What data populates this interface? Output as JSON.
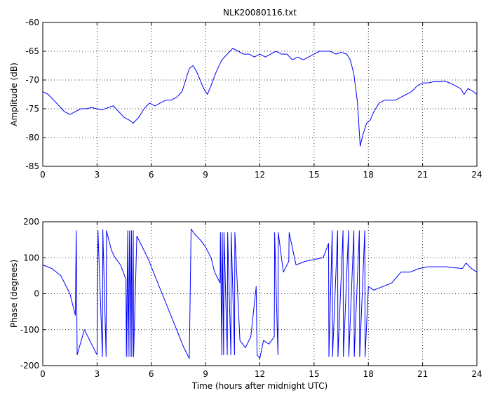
{
  "chart_data": [
    {
      "type": "line",
      "title": "NLK20080116.txt",
      "xlabel": "",
      "ylabel": "Amplitude (dB)",
      "xlim": [
        0,
        24
      ],
      "ylim": [
        -85,
        -60
      ],
      "xticks": [
        "0",
        "3",
        "6",
        "9",
        "12",
        "15",
        "18",
        "21",
        "24"
      ],
      "yticks": [
        "-85",
        "-80",
        "-75",
        "-70",
        "-65",
        "-60"
      ],
      "grid": true,
      "color": "#0000ff",
      "series": [
        {
          "x": [
            0,
            0.3,
            0.6,
            0.9,
            1.2,
            1.5,
            1.8,
            2.1,
            2.4,
            2.7,
            3.0,
            3.3,
            3.6,
            3.9,
            4.2,
            4.5,
            4.8,
            5.0,
            5.3,
            5.6,
            5.9,
            6.2,
            6.5,
            6.8,
            7.1,
            7.4,
            7.7,
            7.9,
            8.1,
            8.3,
            8.5,
            8.7,
            8.9,
            9.1,
            9.3,
            9.6,
            9.9,
            10.2,
            10.5,
            10.8,
            11.1,
            11.4,
            11.7,
            12.0,
            12.3,
            12.6,
            12.9,
            13.2,
            13.5,
            13.8,
            14.1,
            14.4,
            14.7,
            15.0,
            15.3,
            15.6,
            15.9,
            16.2,
            16.5,
            16.8,
            17.0,
            17.2,
            17.4,
            17.55,
            17.7,
            17.9,
            18.1,
            18.3,
            18.6,
            18.9,
            19.2,
            19.5,
            19.8,
            20.1,
            20.4,
            20.7,
            21.0,
            21.3,
            21.6,
            21.9,
            22.2,
            22.5,
            22.8,
            23.1,
            23.3,
            23.5,
            23.8,
            24.0
          ],
          "values": [
            -72,
            -72.5,
            -73.5,
            -74.5,
            -75.5,
            -76,
            -75.5,
            -75,
            -75,
            -74.8,
            -75,
            -75.2,
            -74.8,
            -74.5,
            -75.5,
            -76.5,
            -77,
            -77.5,
            -76.5,
            -75,
            -74,
            -74.5,
            -74,
            -73.5,
            -73.5,
            -73,
            -72,
            -70,
            -68,
            -67.5,
            -68.5,
            -70,
            -71.5,
            -72.5,
            -71,
            -68.5,
            -66.5,
            -65.5,
            -64.5,
            -65,
            -65.5,
            -65.5,
            -66,
            -65.5,
            -66,
            -65.5,
            -65,
            -65.5,
            -65.5,
            -66.5,
            -66,
            -66.5,
            -66,
            -65.5,
            -65,
            -65,
            -65,
            -65.5,
            -65.2,
            -65.5,
            -66.5,
            -69,
            -74,
            -81.5,
            -79.5,
            -77.5,
            -77,
            -75.5,
            -74,
            -73.5,
            -73.5,
            -73.5,
            -73,
            -72.5,
            -72,
            -71,
            -70.5,
            -70.5,
            -70.3,
            -70.3,
            -70.2,
            -70.5,
            -71,
            -71.5,
            -72.5,
            -71.5,
            -72,
            -72.5
          ]
        }
      ]
    },
    {
      "type": "line",
      "title": "",
      "xlabel": "Time (hours after midnight UTC)",
      "ylabel": "Phase (degrees)",
      "xlim": [
        0,
        24
      ],
      "ylim": [
        -200,
        200
      ],
      "xticks": [
        "0",
        "3",
        "6",
        "9",
        "12",
        "15",
        "18",
        "21",
        "24"
      ],
      "yticks": [
        "-200",
        "-100",
        "0",
        "100",
        "200"
      ],
      "grid": true,
      "color": "#0000ff",
      "series": [
        {
          "x": [
            0,
            0.5,
            1.0,
            1.5,
            1.8,
            1.85,
            1.9,
            2.3,
            2.7,
            3.0,
            3.05,
            3.3,
            3.32,
            3.5,
            3.52,
            3.8,
            4.0,
            4.3,
            4.6,
            4.62,
            4.7,
            4.72,
            4.8,
            4.82,
            4.9,
            4.92,
            5.0,
            5.02,
            5.2,
            5.5,
            5.8,
            6.2,
            6.6,
            7.0,
            7.4,
            7.8,
            8.1,
            8.2,
            8.4,
            8.7,
            9.0,
            9.3,
            9.5,
            9.8,
            9.82,
            9.9,
            9.92,
            10.0,
            10.02,
            10.2,
            10.22,
            10.4,
            10.42,
            10.6,
            10.62,
            10.9,
            11.2,
            11.5,
            11.8,
            11.85,
            12.0,
            12.2,
            12.5,
            12.8,
            12.82,
            13.0,
            13.02,
            13.3,
            13.5,
            13.6,
            13.62,
            14.0,
            14.5,
            15.0,
            15.5,
            15.8,
            15.82,
            16.0,
            16.02,
            16.3,
            16.32,
            16.6,
            16.62,
            16.9,
            16.92,
            17.2,
            17.22,
            17.5,
            17.52,
            17.8,
            17.82,
            18.0,
            18.3,
            18.8,
            19.3,
            19.8,
            20.3,
            20.8,
            21.3,
            21.8,
            22.3,
            22.8,
            23.2,
            23.4,
            23.7,
            24.0
          ],
          "values": [
            80,
            70,
            50,
            0,
            -60,
            175,
            -170,
            -100,
            -140,
            -170,
            175,
            -175,
            178,
            -175,
            175,
            120,
            100,
            80,
            40,
            -175,
            175,
            -175,
            175,
            -175,
            175,
            -175,
            175,
            -175,
            160,
            130,
            100,
            50,
            0,
            -50,
            -100,
            -150,
            -180,
            180,
            165,
            150,
            130,
            100,
            60,
            30,
            170,
            -170,
            170,
            -170,
            170,
            -170,
            170,
            -170,
            170,
            -170,
            170,
            -130,
            -150,
            -120,
            20,
            -170,
            -180,
            -130,
            -140,
            -120,
            170,
            -170,
            170,
            60,
            80,
            90,
            170,
            80,
            90,
            95,
            100,
            140,
            -175,
            175,
            -175,
            175,
            -175,
            175,
            -175,
            175,
            -175,
            175,
            -175,
            175,
            -175,
            175,
            -175,
            20,
            10,
            20,
            30,
            60,
            60,
            70,
            75,
            75,
            75,
            72,
            70,
            85,
            70,
            60
          ]
        }
      ]
    }
  ]
}
